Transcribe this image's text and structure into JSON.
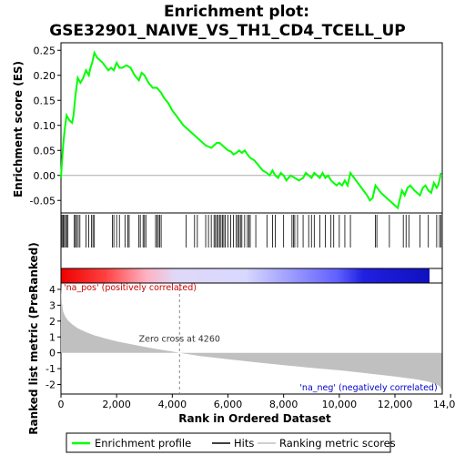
{
  "chart_data": [
    {
      "type": "line",
      "title_line1": "Enrichment plot:",
      "title_line2": "GSE32901_NAIVE_VS_TH1_CD4_TCELL_UP",
      "ylabel": "Enrichment score (ES)",
      "xlim": [
        0,
        13700
      ],
      "ylim": [
        -0.075,
        0.265
      ],
      "yticks": [
        "0.25",
        "0.20",
        "0.15",
        "0.10",
        "0.05",
        "0.00",
        "-0.05"
      ],
      "ytick_values": [
        0.25,
        0.2,
        0.15,
        0.1,
        0.05,
        0.0,
        -0.05
      ],
      "grid": false,
      "line_color": "#00ff00",
      "series": [
        {
          "name": "Enrichment profile",
          "x": [
            0,
            40,
            80,
            130,
            200,
            300,
            400,
            450,
            520,
            600,
            700,
            800,
            900,
            1000,
            1060,
            1120,
            1200,
            1300,
            1500,
            1700,
            1800,
            1900,
            2000,
            2100,
            2200,
            2350,
            2500,
            2650,
            2800,
            2900,
            3000,
            3150,
            3300,
            3450,
            3600,
            3700,
            3850,
            4000,
            4200,
            4400,
            4600,
            4800,
            5000,
            5200,
            5400,
            5500,
            5600,
            5700,
            5800,
            5900,
            6000,
            6100,
            6200,
            6300,
            6400,
            6500,
            6600,
            6700,
            6800,
            6950,
            7100,
            7250,
            7400,
            7500,
            7600,
            7700,
            7800,
            7900,
            8000,
            8100,
            8250,
            8400,
            8550,
            8700,
            8800,
            8900,
            9000,
            9100,
            9200,
            9300,
            9400,
            9500,
            9600,
            9700,
            9800,
            9900,
            10000,
            10100,
            10200,
            10300,
            10400,
            10600,
            10800,
            11000,
            11100,
            11200,
            11300,
            11500,
            11700,
            11900,
            12100,
            12250,
            12350,
            12450,
            12550,
            12700,
            12900,
            13000,
            13100,
            13200,
            13300,
            13400,
            13500,
            13550,
            13600,
            13650
          ],
          "y": [
            -0.005,
            0.03,
            0.06,
            0.09,
            0.12,
            0.11,
            0.105,
            0.12,
            0.16,
            0.195,
            0.185,
            0.195,
            0.21,
            0.2,
            0.215,
            0.225,
            0.245,
            0.235,
            0.225,
            0.21,
            0.215,
            0.21,
            0.225,
            0.215,
            0.215,
            0.22,
            0.215,
            0.2,
            0.19,
            0.205,
            0.2,
            0.185,
            0.175,
            0.175,
            0.165,
            0.155,
            0.145,
            0.13,
            0.115,
            0.1,
            0.09,
            0.08,
            0.07,
            0.06,
            0.055,
            0.06,
            0.065,
            0.065,
            0.06,
            0.055,
            0.05,
            0.048,
            0.042,
            0.045,
            0.05,
            0.045,
            0.05,
            0.042,
            0.035,
            0.03,
            0.02,
            0.01,
            0.005,
            0.0,
            0.01,
            0.0,
            -0.005,
            0.005,
            0.0,
            -0.01,
            0.0,
            -0.005,
            -0.01,
            -0.005,
            0.005,
            0.0,
            -0.005,
            0.005,
            0.0,
            -0.005,
            0.005,
            -0.005,
            0.0,
            -0.01,
            -0.015,
            -0.02,
            -0.015,
            -0.02,
            -0.01,
            -0.02,
            0.005,
            -0.01,
            -0.025,
            -0.04,
            -0.05,
            -0.045,
            -0.02,
            -0.035,
            -0.045,
            -0.055,
            -0.065,
            -0.03,
            -0.04,
            -0.025,
            -0.02,
            -0.03,
            -0.04,
            -0.025,
            -0.02,
            -0.03,
            -0.035,
            -0.015,
            -0.025,
            -0.02,
            -0.01,
            0.005
          ]
        }
      ]
    },
    {
      "type": "bar",
      "name": "Hits",
      "hits": [
        10,
        40,
        80,
        120,
        170,
        200,
        250,
        480,
        520,
        560,
        620,
        680,
        900,
        1000,
        1100,
        1150,
        1200,
        1850,
        1900,
        2000,
        2100,
        2300,
        2400,
        2450,
        2800,
        2850,
        2950,
        3000,
        3050,
        3400,
        3450,
        3500,
        3550,
        3600,
        4500,
        4800,
        4900,
        5200,
        5300,
        5400,
        5500,
        5550,
        5600,
        5650,
        5700,
        5750,
        5800,
        5850,
        5900,
        6000,
        6100,
        6200,
        6300,
        6350,
        6400,
        6450,
        6500,
        6600,
        6700,
        6750,
        6800,
        7000,
        7400,
        7600,
        7700,
        8000,
        8300,
        8350,
        8400,
        8500,
        8700,
        8900,
        9000,
        9100,
        9300,
        9500,
        9700,
        9800,
        10000,
        10200,
        10400,
        11300,
        11350,
        11800,
        12300,
        12400,
        12500,
        12900,
        13200,
        13500,
        13600,
        13650
      ]
    },
    {
      "type": "area",
      "ylabel": "Ranked list metric (PreRanked)",
      "xlabel": "Rank in Ordered Dataset",
      "xlim": [
        0,
        13700
      ],
      "ylim": [
        -2.6,
        4.4
      ],
      "yticks": [
        "4",
        "3",
        "2",
        "1",
        "0",
        "-1",
        "-2"
      ],
      "ytick_values": [
        4,
        3,
        2,
        1,
        0,
        -1,
        -2
      ],
      "xticks": [
        "0",
        "2,000",
        "4,000",
        "6,000",
        "8,000",
        "10,000",
        "12,000",
        "14,000"
      ],
      "xtick_values": [
        0,
        2000,
        4000,
        6000,
        8000,
        10000,
        12000,
        14000
      ],
      "zero_cross": 4260,
      "series": [
        {
          "name": "Ranking metric scores",
          "x": [
            0,
            30,
            80,
            150,
            250,
            400,
            600,
            900,
            1200,
            1600,
            2000,
            2500,
            3000,
            3500,
            4000,
            4260,
            5000,
            6000,
            7000,
            8000,
            9000,
            10000,
            11000,
            12000,
            12800,
            13200,
            13450,
            13600,
            13680
          ],
          "y": [
            4.2,
            3.2,
            2.6,
            2.3,
            2.05,
            1.8,
            1.55,
            1.3,
            1.1,
            0.9,
            0.72,
            0.55,
            0.38,
            0.22,
            0.08,
            0.0,
            -0.2,
            -0.4,
            -0.6,
            -0.78,
            -0.95,
            -1.1,
            -1.3,
            -1.5,
            -1.68,
            -1.82,
            -1.95,
            -2.1,
            -2.35
          ]
        }
      ],
      "fill_color": "#c0c0c0"
    }
  ],
  "annotations": {
    "zero_cross_label": "Zero cross at 4260",
    "pos_label": "'na_pos' (positively correlated)",
    "neg_label": "'na_neg' (negatively correlated)",
    "pos_color": "#cc0000",
    "neg_color": "#0000cc"
  },
  "legend": {
    "items": [
      {
        "label": "Enrichment profile",
        "color": "#00ff00"
      },
      {
        "label": "Hits",
        "color": "#000000"
      },
      {
        "label": "Ranking metric scores",
        "color": "#c0c0c0"
      }
    ]
  }
}
